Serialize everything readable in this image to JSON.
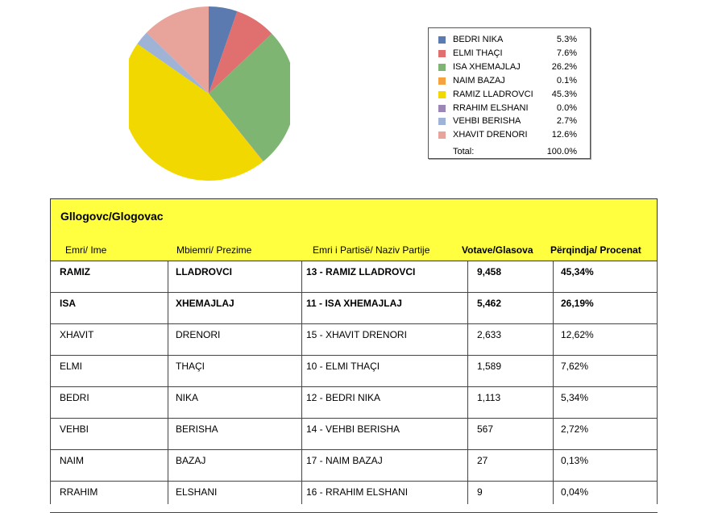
{
  "chart_data": {
    "type": "pie",
    "slices": [
      {
        "name": "BEDRI NIKA",
        "value": 5.3,
        "label": "5.3%",
        "color": "#5b7ab0"
      },
      {
        "name": "ELMI THAÇI",
        "value": 7.6,
        "label": "7.6%",
        "color": "#e07070"
      },
      {
        "name": "ISA XHEMAJLAJ",
        "value": 26.2,
        "label": "26.2%",
        "color": "#7fb573"
      },
      {
        "name": "NAIM BAZAJ",
        "value": 0.1,
        "label": "0.1%",
        "color": "#f4a340"
      },
      {
        "name": "RAMIZ LLADROVCI",
        "value": 45.3,
        "label": "45.3%",
        "color": "#f0d800"
      },
      {
        "name": "RRAHIM ELSHANI",
        "value": 0.0,
        "label": "0.0%",
        "color": "#9b86b5"
      },
      {
        "name": "VEHBI BERISHA",
        "value": 2.7,
        "label": "2.7%",
        "color": "#9fb3d6"
      },
      {
        "name": "XHAVIT DRENORI",
        "value": 12.6,
        "label": "12.6%",
        "color": "#e8a39a"
      }
    ],
    "total_label": "Total:",
    "total_value": "100.0%"
  },
  "table": {
    "title": "Gllogovc/Glogovac",
    "headers": [
      "Emri/ Ime",
      "Mbiemri/ Prezime",
      "Emri i Partisë/ Naziv Partije",
      "Votave/Glasova",
      "Përqindja/ Procenat"
    ],
    "rows": [
      {
        "ime": "RAMIZ",
        "mbiemri": "LLADROVCI",
        "partia": "13 - RAMIZ LLADROVCI",
        "votat": "9,458",
        "perqindja": "45,34%",
        "bold": true
      },
      {
        "ime": "ISA",
        "mbiemri": "XHEMAJLAJ",
        "partia": "11 - ISA XHEMAJLAJ",
        "votat": "5,462",
        "perqindja": "26,19%",
        "bold": true
      },
      {
        "ime": "XHAVIT",
        "mbiemri": "DRENORI",
        "partia": "15 - XHAVIT DRENORI",
        "votat": "2,633",
        "perqindja": "12,62%",
        "bold": false
      },
      {
        "ime": "ELMI",
        "mbiemri": "THAÇI",
        "partia": "10 - ELMI THAÇI",
        "votat": "1,589",
        "perqindja": "7,62%",
        "bold": false
      },
      {
        "ime": "BEDRI",
        "mbiemri": "NIKA",
        "partia": "12 - BEDRI NIKA",
        "votat": "1,113",
        "perqindja": "5,34%",
        "bold": false
      },
      {
        "ime": "VEHBI",
        "mbiemri": "BERISHA",
        "partia": "14 - VEHBI BERISHA",
        "votat": "567",
        "perqindja": "2,72%",
        "bold": false
      },
      {
        "ime": "NAIM",
        "mbiemri": "BAZAJ",
        "partia": "17 - NAIM BAZAJ",
        "votat": "27",
        "perqindja": "0,13%",
        "bold": false
      },
      {
        "ime": "RRAHIM",
        "mbiemri": "ELSHANI",
        "partia": "16 - RRAHIM ELSHANI",
        "votat": "9",
        "perqindja": "0,04%",
        "bold": false
      }
    ]
  }
}
